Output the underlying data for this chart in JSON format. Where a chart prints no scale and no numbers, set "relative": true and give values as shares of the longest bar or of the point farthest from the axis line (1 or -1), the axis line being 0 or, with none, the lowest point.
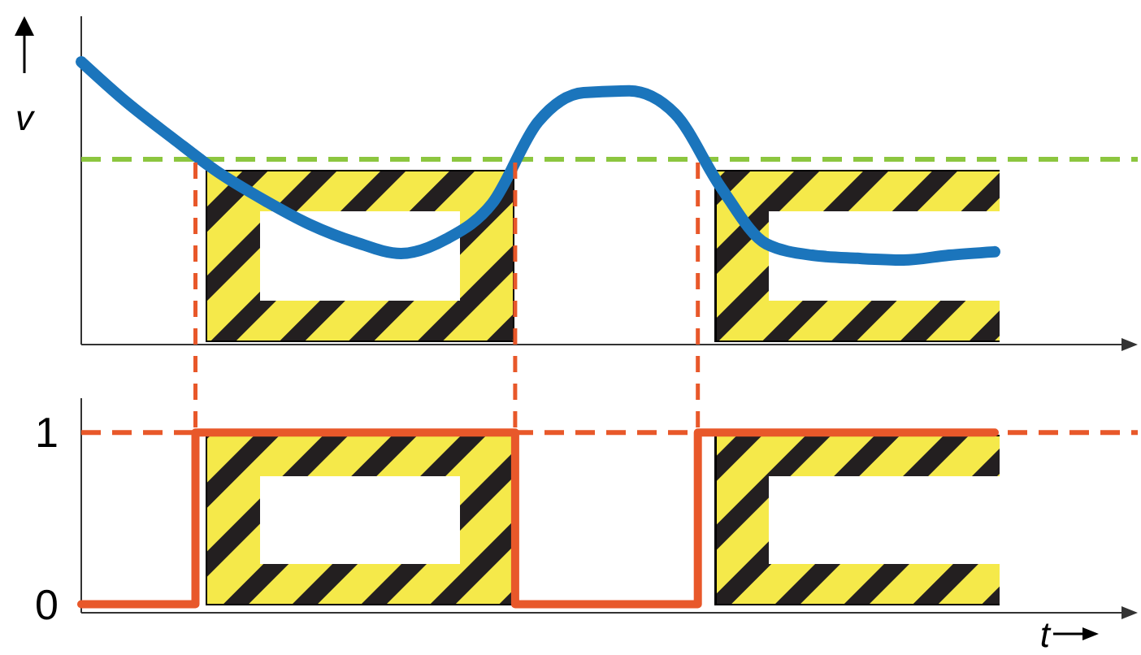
{
  "chart_data": [
    {
      "type": "line",
      "relative": true,
      "ylabel": "v",
      "tick_labels": false,
      "categories": [
        null,
        null,
        null,
        null,
        null,
        null,
        null,
        null,
        null,
        null,
        null,
        null,
        null,
        null,
        null,
        null,
        null,
        null,
        null,
        null,
        null
      ],
      "series": [
        {
          "color": "#1b75bc",
          "values": [
            1.0,
            0.856,
            0.73,
            0.609,
            0.511,
            0.425,
            0.362,
            0.322,
            0.374,
            0.5,
            0.787,
            0.891,
            0.897,
            0.816,
            0.557,
            0.356,
            0.316,
            0.305,
            0.299,
            0.316,
            0.328
          ]
        }
      ],
      "ref_lines": [
        {
          "axis": "y",
          "value": 0.655,
          "color": "#8cc63f",
          "line_style": "dashed"
        }
      ]
    },
    {
      "type": "step",
      "xlabel": "t",
      "tick_labels": "y",
      "ylim": [
        -0.05,
        1.2
      ],
      "yticks": [
        0,
        1
      ],
      "categories": [
        null,
        null,
        null,
        null,
        null,
        null,
        null,
        null,
        null,
        null,
        null,
        null,
        null,
        null,
        null,
        null,
        null,
        null,
        null,
        null,
        null
      ],
      "series": [
        {
          "color": "#e8582a",
          "values": [
            0,
            0,
            0,
            1,
            1,
            1,
            1,
            1,
            1,
            1,
            0,
            0,
            0,
            0,
            1,
            1,
            1,
            1,
            1,
            1,
            1
          ]
        }
      ],
      "ref_lines": [
        {
          "axis": "y",
          "value": 1,
          "color": "#e8582a",
          "line_style": "dashed"
        }
      ]
    }
  ]
}
